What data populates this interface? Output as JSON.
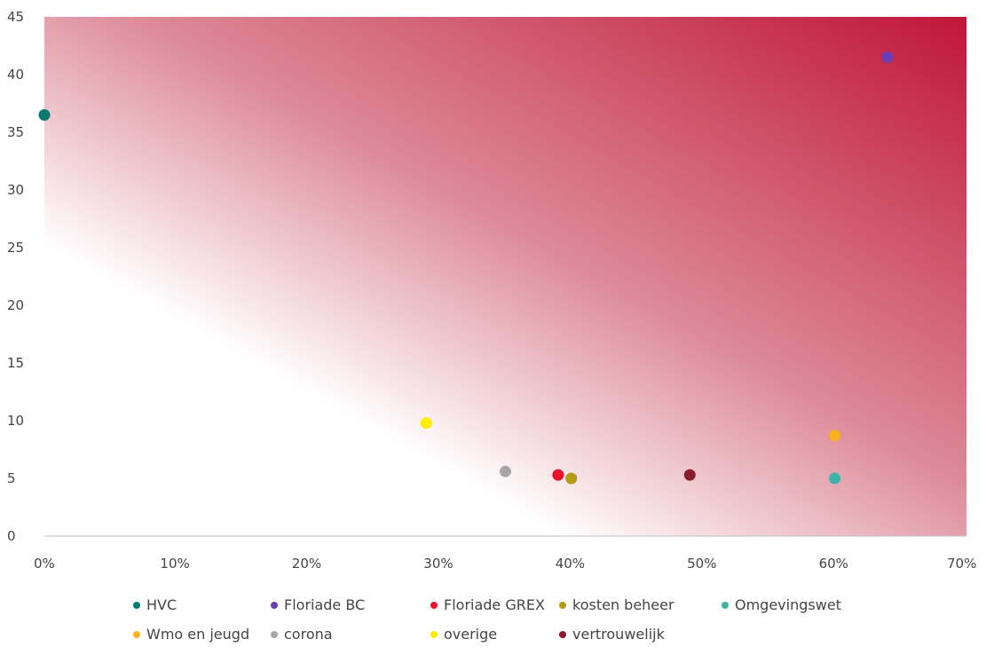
{
  "chart_data": {
    "type": "scatter",
    "title": "",
    "xlabel": "",
    "ylabel": "",
    "xlim": [
      0,
      0.7
    ],
    "ylim": [
      0,
      45
    ],
    "x_ticks": [
      "0%",
      "10%",
      "20%",
      "30%",
      "40%",
      "50%",
      "60%",
      "70%"
    ],
    "y_ticks": [
      "0",
      "5",
      "10",
      "15",
      "20",
      "25",
      "30",
      "35",
      "40",
      "45"
    ],
    "grid": false,
    "background": "gradient white (bottom-left) to crimson (top-right)",
    "legend_position": "bottom",
    "series": [
      {
        "name": "HVC",
        "x": 0.0,
        "y": 36.5,
        "color": "#0a7a70"
      },
      {
        "name": "Floriade BC",
        "x": 0.64,
        "y": 41.5,
        "color": "#6a3fb5"
      },
      {
        "name": "Floriade GREX",
        "x": 0.39,
        "y": 5.3,
        "color": "#e8132b"
      },
      {
        "name": "kosten beheer",
        "x": 0.4,
        "y": 5.0,
        "color": "#b59a14"
      },
      {
        "name": "Omgevingswet",
        "x": 0.6,
        "y": 5.0,
        "color": "#3fb3a8"
      },
      {
        "name": "Wmo en jeugd",
        "x": 0.6,
        "y": 8.7,
        "color": "#f7b21c"
      },
      {
        "name": "corona",
        "x": 0.35,
        "y": 5.6,
        "color": "#a6a6a6"
      },
      {
        "name": "overige",
        "x": 0.29,
        "y": 9.8,
        "color": "#ffee00"
      },
      {
        "name": "vertrouwelijk",
        "x": 0.49,
        "y": 5.3,
        "color": "#8b1a2c"
      }
    ]
  }
}
